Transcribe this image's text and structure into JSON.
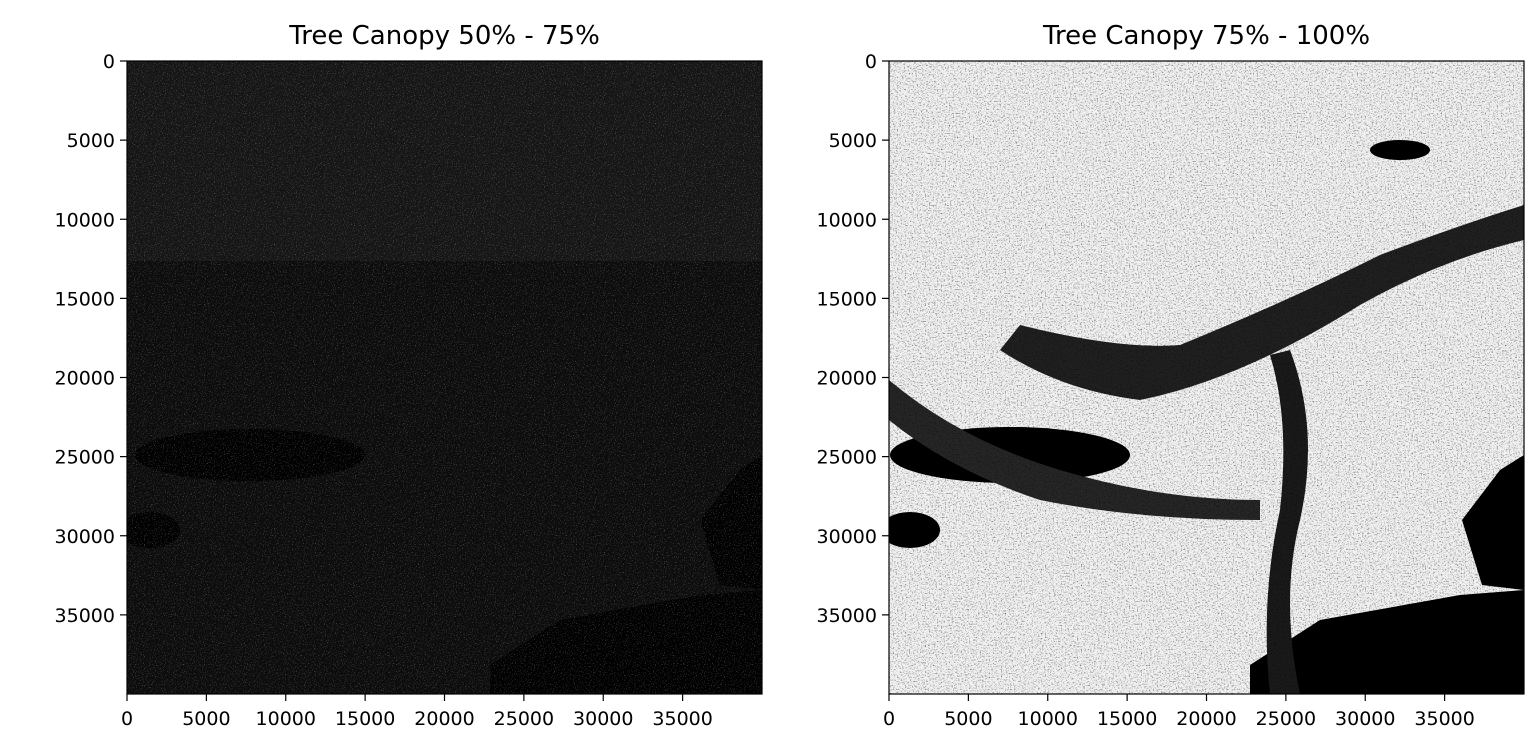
{
  "chart_data": [
    {
      "type": "heatmap",
      "title": "Tree Canopy 50% - 75%",
      "colormap": "gray",
      "xlim": [
        0,
        40000
      ],
      "ylim": [
        40000,
        0
      ],
      "y_inverted": true,
      "xticks": [
        0,
        5000,
        10000,
        15000,
        20000,
        25000,
        30000,
        35000
      ],
      "yticks": [
        0,
        5000,
        10000,
        15000,
        20000,
        25000,
        30000,
        35000
      ],
      "xtick_labels": [
        "0",
        "5000",
        "10000",
        "15000",
        "20000",
        "25000",
        "30000",
        "35000"
      ],
      "ytick_labels": [
        "0",
        "5000",
        "10000",
        "15000",
        "20000",
        "25000",
        "30000",
        "35000"
      ],
      "grid": false,
      "intensity": "dark",
      "xlabel": "",
      "ylabel": ""
    },
    {
      "type": "heatmap",
      "title": "Tree Canopy 75% - 100%",
      "colormap": "gray",
      "xlim": [
        0,
        40000
      ],
      "ylim": [
        40000,
        0
      ],
      "y_inverted": true,
      "xticks": [
        0,
        5000,
        10000,
        15000,
        20000,
        25000,
        30000,
        35000
      ],
      "yticks": [
        0,
        5000,
        10000,
        15000,
        20000,
        25000,
        30000,
        35000
      ],
      "xtick_labels": [
        "0",
        "5000",
        "10000",
        "15000",
        "20000",
        "25000",
        "30000",
        "35000"
      ],
      "ytick_labels": [
        "0",
        "5000",
        "10000",
        "15000",
        "20000",
        "25000",
        "30000",
        "35000"
      ],
      "grid": false,
      "intensity": "bright",
      "xlabel": "",
      "ylabel": ""
    }
  ]
}
